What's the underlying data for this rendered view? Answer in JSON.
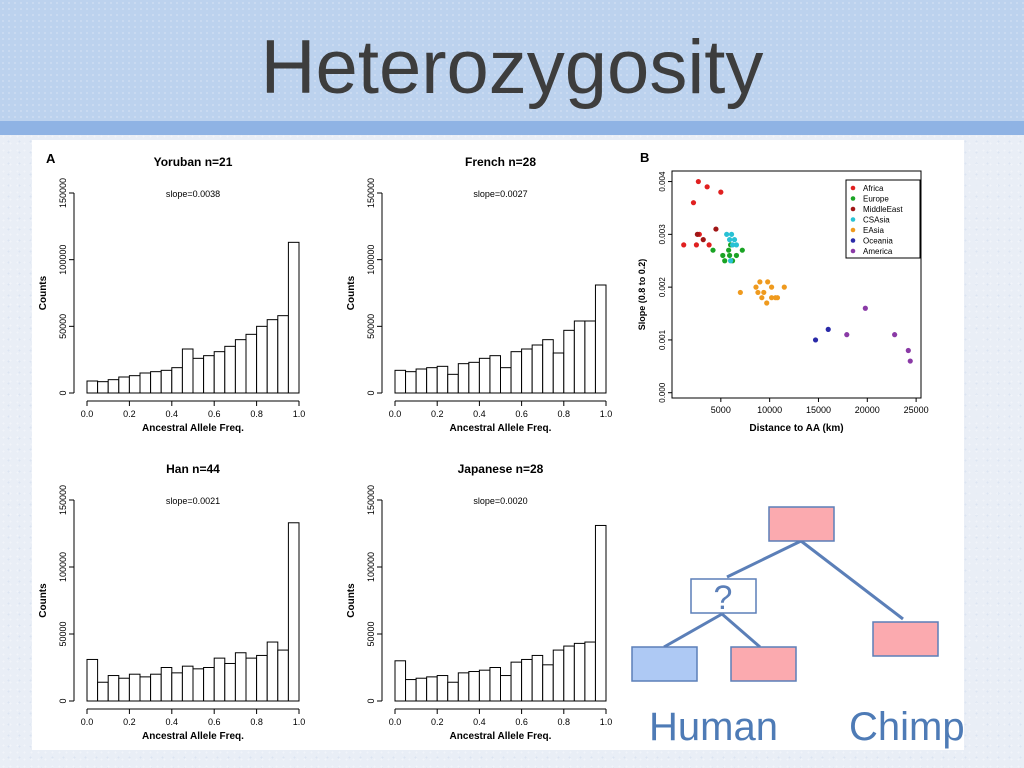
{
  "slide": {
    "title": "Heterozygosity"
  },
  "panel_letters": {
    "a": "A",
    "b": "B"
  },
  "tree": {
    "node_label": "?",
    "leaf_labels": [
      "Human",
      "Chimp"
    ],
    "colors": {
      "ancestor": "#fbaaaf",
      "human": "#aec9f4",
      "line": "#5b7fb8",
      "border": "#5b7fb8",
      "label": "#4e7bb6"
    }
  },
  "chart_data": [
    {
      "type": "bar",
      "title": "Yoruban n=21",
      "annotation": "slope=0.0038",
      "xlabel": "Ancestral Allele Freq.",
      "ylabel": "Counts",
      "x_ticks": [
        "0.0",
        "0.2",
        "0.4",
        "0.6",
        "0.8",
        "1.0"
      ],
      "y_ticks": [
        "0",
        "50000",
        "100000",
        "150000"
      ],
      "xlim": [
        0,
        1
      ],
      "ylim": [
        0,
        150000
      ],
      "bin_width": 0.05,
      "values": [
        9000,
        8500,
        10000,
        12000,
        13000,
        15000,
        16000,
        17000,
        19000,
        33000,
        26000,
        28000,
        31000,
        35000,
        40000,
        44000,
        50000,
        55000,
        58000,
        113000
      ]
    },
    {
      "type": "bar",
      "title": "French n=28",
      "annotation": "slope=0.0027",
      "xlabel": "Ancestral Allele Freq.",
      "ylabel": "Counts",
      "x_ticks": [
        "0.0",
        "0.2",
        "0.4",
        "0.6",
        "0.8",
        "1.0"
      ],
      "y_ticks": [
        "0",
        "50000",
        "100000",
        "150000"
      ],
      "xlim": [
        0,
        1
      ],
      "ylim": [
        0,
        150000
      ],
      "bin_width": 0.05,
      "values": [
        17000,
        16000,
        18000,
        19000,
        20000,
        14000,
        22000,
        23000,
        26000,
        28000,
        19000,
        31000,
        33000,
        36000,
        40000,
        30000,
        47000,
        54000,
        54000,
        81000
      ]
    },
    {
      "type": "bar",
      "title": "Han n=44",
      "annotation": "slope=0.0021",
      "xlabel": "Ancestral Allele Freq.",
      "ylabel": "Counts",
      "x_ticks": [
        "0.0",
        "0.2",
        "0.4",
        "0.6",
        "0.8",
        "1.0"
      ],
      "y_ticks": [
        "0",
        "50000",
        "100000",
        "150000"
      ],
      "xlim": [
        0,
        1
      ],
      "ylim": [
        0,
        150000
      ],
      "bin_width": 0.05,
      "values": [
        31000,
        14000,
        19000,
        17000,
        20000,
        18000,
        20000,
        25000,
        21000,
        26000,
        24000,
        25000,
        32000,
        28000,
        36000,
        32000,
        34000,
        44000,
        38000,
        133000
      ]
    },
    {
      "type": "bar",
      "title": "Japanese n=28",
      "annotation": "slope=0.0020",
      "xlabel": "Ancestral Allele Freq.",
      "ylabel": "Counts",
      "x_ticks": [
        "0.0",
        "0.2",
        "0.4",
        "0.6",
        "0.8",
        "1.0"
      ],
      "y_ticks": [
        "0",
        "50000",
        "100000",
        "150000"
      ],
      "xlim": [
        0,
        1
      ],
      "ylim": [
        0,
        150000
      ],
      "bin_width": 0.05,
      "values": [
        30000,
        16000,
        17000,
        18000,
        19000,
        14000,
        21000,
        22000,
        23000,
        25000,
        19000,
        29000,
        31000,
        34000,
        27000,
        38000,
        41000,
        43000,
        44000,
        131000
      ]
    },
    {
      "type": "scatter",
      "xlabel": "Distance to AA (km)",
      "ylabel": "Slope    (0.8 to 0.2)",
      "x_ticks": [
        "5000",
        "10000",
        "15000",
        "20000",
        "25000"
      ],
      "y_ticks": [
        "0.000",
        "0.001",
        "0.002",
        "0.003",
        "0.004"
      ],
      "xlim": [
        0,
        25500
      ],
      "ylim": [
        -0.0001,
        0.0042
      ],
      "legend_position": "top-right",
      "series": [
        {
          "name": "Africa",
          "color": "#e02020",
          "points": [
            [
              1200,
              0.0028
            ],
            [
              2200,
              0.0036
            ],
            [
              2700,
              0.004
            ],
            [
              3600,
              0.0039
            ],
            [
              5000,
              0.0038
            ],
            [
              2800,
              0.003
            ],
            [
              3800,
              0.0028
            ],
            [
              2500,
              0.0028
            ]
          ]
        },
        {
          "name": "Europe",
          "color": "#1aa324",
          "points": [
            [
              4200,
              0.0027
            ],
            [
              5200,
              0.0026
            ],
            [
              5800,
              0.0027
            ],
            [
              6200,
              0.0025
            ],
            [
              6600,
              0.0026
            ],
            [
              5400,
              0.0025
            ],
            [
              6000,
              0.0028
            ],
            [
              7200,
              0.0027
            ],
            [
              5900,
              0.0026
            ]
          ]
        },
        {
          "name": "MiddleEast",
          "color": "#a01616",
          "points": [
            [
              2600,
              0.003
            ],
            [
              4500,
              0.0031
            ],
            [
              3200,
              0.0029
            ]
          ]
        },
        {
          "name": "CSAsia",
          "color": "#28c1d4",
          "points": [
            [
              5600,
              0.003
            ],
            [
              6100,
              0.003
            ],
            [
              6400,
              0.0029
            ],
            [
              5900,
              0.0029
            ],
            [
              6200,
              0.0028
            ],
            [
              6600,
              0.0028
            ],
            [
              6000,
              0.0025
            ]
          ]
        },
        {
          "name": "EAsia",
          "color": "#ef9a1e",
          "points": [
            [
              7000,
              0.0019
            ],
            [
              8600,
              0.002
            ],
            [
              9000,
              0.0021
            ],
            [
              9400,
              0.0019
            ],
            [
              9800,
              0.0021
            ],
            [
              10200,
              0.002
            ],
            [
              10600,
              0.0018
            ],
            [
              11500,
              0.002
            ],
            [
              9200,
              0.0018
            ],
            [
              9700,
              0.0017
            ],
            [
              10200,
              0.0018
            ],
            [
              8800,
              0.0019
            ],
            [
              10800,
              0.0018
            ]
          ]
        },
        {
          "name": "Oceania",
          "color": "#2a2aa8",
          "points": [
            [
              14700,
              0.001
            ],
            [
              16000,
              0.0012
            ]
          ]
        },
        {
          "name": "America",
          "color": "#8a3aa6",
          "points": [
            [
              17900,
              0.0011
            ],
            [
              19800,
              0.0016
            ],
            [
              22800,
              0.0011
            ],
            [
              24200,
              0.0008
            ],
            [
              24400,
              0.0006
            ]
          ]
        }
      ]
    }
  ]
}
